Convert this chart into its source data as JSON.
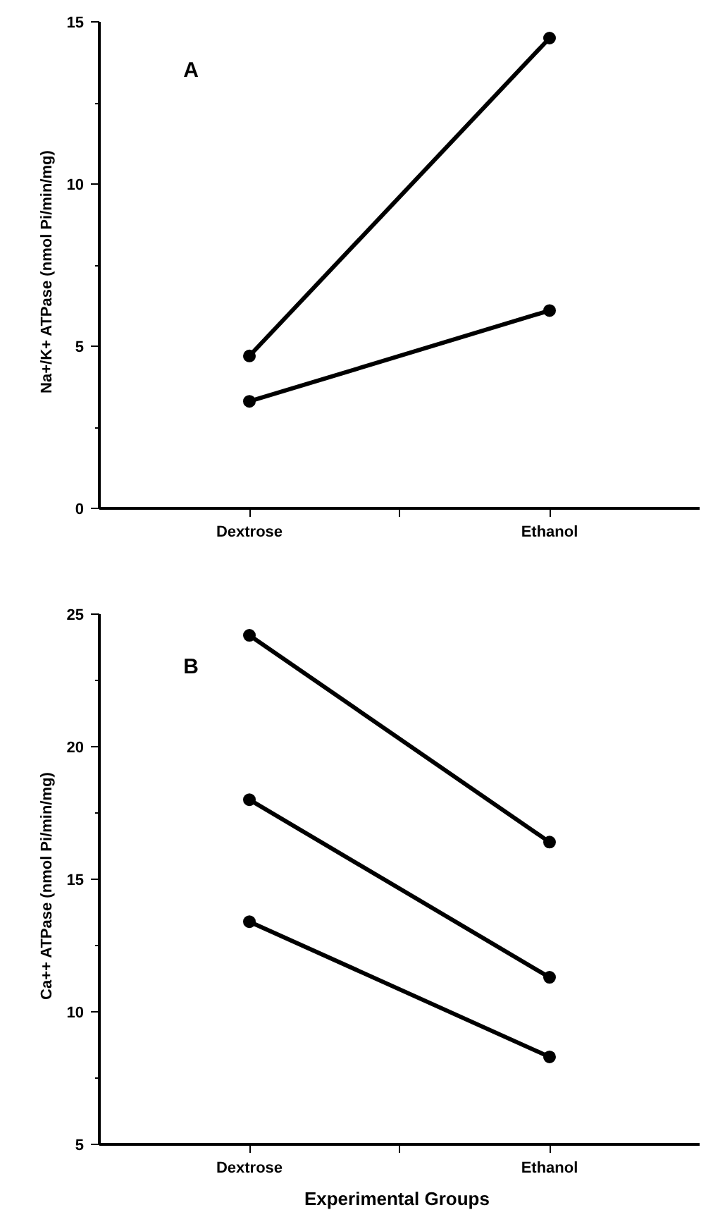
{
  "chart_data": [
    {
      "type": "line",
      "categories": [
        "Dextrose",
        "Ethanol"
      ],
      "ylabel": "Na+/K+  ATPase  (nmol  Pi/min/mg)",
      "ylim": [
        0,
        15
      ],
      "yticks": [
        0,
        5,
        10,
        15
      ],
      "annotations": [
        "A"
      ],
      "marker": "circle",
      "grid": false,
      "series": [
        {
          "color": "#000000",
          "values": [
            4.7,
            14.5
          ]
        },
        {
          "color": "#000000",
          "values": [
            3.3,
            6.1
          ]
        }
      ]
    },
    {
      "type": "line",
      "categories": [
        "Dextrose",
        "Ethanol"
      ],
      "xlabel": "Experimental  Groups",
      "ylabel": "Ca++  ATPase  (nmol  Pi/min/mg)",
      "ylim": [
        5,
        25
      ],
      "yticks": [
        5,
        10,
        15,
        20,
        25
      ],
      "annotations": [
        "B"
      ],
      "marker": "circle",
      "grid": false,
      "series": [
        {
          "color": "#000000",
          "values": [
            24.2,
            16.4
          ]
        },
        {
          "color": "#000000",
          "values": [
            18.0,
            11.3
          ]
        },
        {
          "color": "#000000",
          "values": [
            13.4,
            8.3
          ]
        }
      ]
    }
  ]
}
